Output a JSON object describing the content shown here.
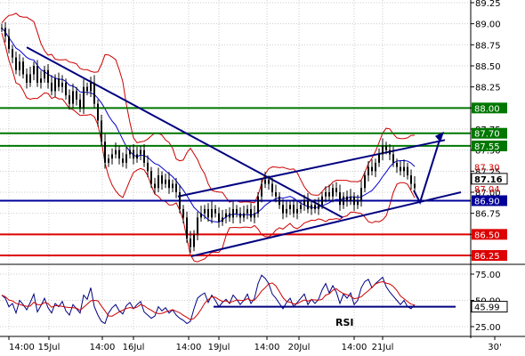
{
  "chart_data": [
    {
      "type": "line",
      "subtype": "candlestick",
      "instrument_note": "",
      "y_axis": {
        "ylim": [
          86.0,
          89.3
        ],
        "ticks": [
          "89.25",
          "89.00",
          "88.75",
          "88.50",
          "88.25",
          "88.00",
          "87.75",
          "87.50",
          "87.25",
          "87.00",
          "86.75",
          "86.50",
          "86.25"
        ],
        "position": "right"
      },
      "x_axis": {
        "ticks": [
          "14:00",
          "15Jul",
          "14:00",
          "16Jul",
          "14:00",
          "19Jul",
          "14:00",
          "20Jul",
          "14:00",
          "21Jul",
          "30'"
        ]
      },
      "grid": true,
      "price_series": {
        "name": "",
        "x": [
          0,
          4,
          8,
          12,
          16,
          20,
          24,
          28,
          32,
          36,
          40,
          44,
          48,
          52,
          56,
          60,
          64,
          68,
          72,
          76,
          80,
          84,
          88,
          92,
          96,
          100,
          104,
          108,
          112,
          116,
          120,
          124,
          128,
          132,
          136,
          140,
          144,
          148,
          152,
          156,
          160,
          164,
          168,
          172,
          176,
          180,
          184,
          188,
          192,
          196,
          200,
          204,
          208,
          212,
          216,
          220,
          224,
          228,
          232,
          236,
          240,
          244,
          248,
          252,
          256,
          260,
          264,
          268,
          272,
          276,
          280,
          284,
          288,
          292,
          296,
          300,
          304,
          308,
          312,
          316,
          320,
          324,
          328,
          332,
          336,
          340,
          344,
          348,
          352,
          356,
          360,
          364,
          368,
          372,
          376,
          380,
          384,
          388,
          392,
          396,
          400,
          404,
          408,
          412,
          416,
          420,
          424,
          428,
          432,
          436,
          440,
          444,
          448,
          452,
          456,
          460,
          464
        ],
        "y": [
          88.95,
          88.85,
          88.7,
          88.6,
          88.45,
          88.55,
          88.4,
          88.3,
          88.4,
          88.5,
          88.3,
          88.35,
          88.45,
          88.3,
          88.2,
          88.35,
          88.25,
          88.3,
          88.15,
          88.05,
          88.2,
          88.1,
          88.0,
          88.25,
          88.2,
          88.3,
          88.05,
          87.85,
          87.6,
          87.35,
          87.4,
          87.45,
          87.5,
          87.4,
          87.35,
          87.45,
          87.5,
          87.4,
          87.45,
          87.5,
          87.35,
          87.25,
          87.1,
          87.05,
          87.2,
          87.1,
          87.15,
          87.05,
          87.1,
          87.0,
          86.8,
          86.7,
          86.45,
          86.35,
          86.5,
          86.7,
          86.75,
          86.8,
          86.7,
          86.8,
          86.75,
          86.65,
          86.7,
          86.75,
          86.7,
          86.8,
          86.75,
          86.7,
          86.75,
          86.8,
          86.7,
          86.75,
          86.95,
          87.1,
          87.15,
          87.1,
          87.0,
          86.95,
          86.85,
          86.75,
          86.8,
          86.85,
          86.75,
          86.8,
          86.85,
          86.9,
          86.8,
          86.85,
          86.8,
          86.85,
          86.95,
          87.0,
          86.95,
          87.05,
          87.0,
          86.85,
          86.95,
          86.9,
          86.95,
          86.85,
          86.9,
          87.05,
          87.2,
          87.3,
          87.25,
          87.35,
          87.45,
          87.55,
          87.5,
          87.45,
          87.35,
          87.3,
          87.25,
          87.3,
          87.2,
          87.1,
          87.05
        ]
      },
      "horizontal_levels": [
        {
          "value": 88.0,
          "label": "88.00",
          "color": "#007700"
        },
        {
          "value": 87.7,
          "label": "87.70",
          "color": "#007700"
        },
        {
          "value": 87.55,
          "label": "87.55",
          "color": "#007700"
        },
        {
          "value": 87.3,
          "label": "87.30",
          "color": "#dd0000"
        },
        {
          "value": 87.16,
          "label": "87.16",
          "color": "#000000"
        },
        {
          "value": 87.04,
          "label": "87.04",
          "color": "#dd0000"
        },
        {
          "value": 86.9,
          "label": "86.90",
          "color": "#000099"
        },
        {
          "value": 86.5,
          "label": "86.50",
          "color": "#dd0000"
        },
        {
          "value": 86.25,
          "label": "86.25",
          "color": "#dd0000"
        }
      ],
      "colors": {
        "bands": "#cc0000",
        "moving_average": "#0000cc",
        "trendlines": "#000080",
        "candles": "#000000"
      }
    },
    {
      "type": "line",
      "title": "RSI",
      "y_axis": {
        "ylim": [
          20,
          85
        ],
        "ticks": [
          "75.00",
          "50.00",
          "25.00"
        ],
        "position": "right"
      },
      "current_label": "45.99",
      "series": [
        {
          "name": "RSI",
          "values": [
            55,
            52,
            44,
            47,
            38,
            50,
            46,
            41,
            48,
            56,
            39,
            45,
            52,
            43,
            38,
            47,
            44,
            49,
            40,
            36,
            46,
            42,
            38,
            55,
            51,
            62,
            44,
            36,
            30,
            28,
            38,
            43,
            46,
            40,
            37,
            45,
            48,
            42,
            46,
            49,
            39,
            36,
            33,
            35,
            44,
            40,
            43,
            38,
            41,
            36,
            33,
            31,
            28,
            30,
            42,
            52,
            55,
            57,
            48,
            55,
            50,
            44,
            48,
            51,
            47,
            55,
            51,
            46,
            50,
            56,
            47,
            52,
            66,
            74,
            71,
            66,
            56,
            52,
            47,
            42,
            48,
            52,
            44,
            48,
            52,
            56,
            46,
            51,
            47,
            51,
            60,
            66,
            57,
            64,
            58,
            47,
            56,
            52,
            57,
            46,
            50,
            62,
            68,
            70,
            62,
            66,
            69,
            72,
            63,
            58,
            54,
            50,
            46,
            50,
            44,
            42,
            46
          ]
        }
      ],
      "reference_level": 44
    }
  ]
}
